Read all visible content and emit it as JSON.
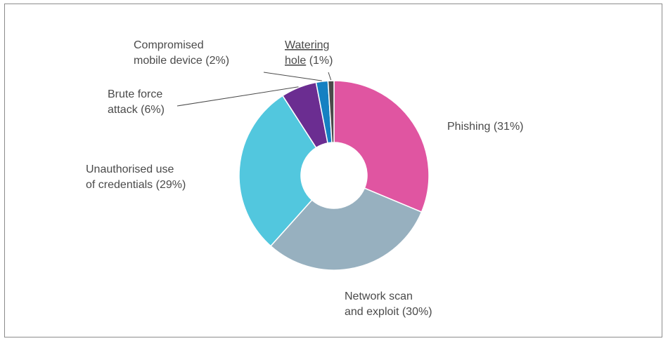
{
  "chart_data": {
    "type": "pie",
    "donut": true,
    "categories": [
      "Phishing",
      "Network scan and exploit",
      "Unauthorised use of credentials",
      "Brute force attack",
      "Compromised mobile device",
      "Watering hole"
    ],
    "values": [
      31,
      30,
      29,
      6,
      2,
      1
    ],
    "units": "%",
    "colors": [
      "#e055a1",
      "#97b0bf",
      "#52c7de",
      "#6b2d91",
      "#1580c2",
      "#4a4a4a"
    ],
    "labels": [
      {
        "lines": [
          "Phishing (31%)"
        ]
      },
      {
        "lines": [
          "Network scan",
          "and exploit (30%)"
        ]
      },
      {
        "lines": [
          "Unauthorised use",
          "of credentials (29%)"
        ]
      },
      {
        "lines": [
          "Brute force",
          "attack (6%)"
        ]
      },
      {
        "lines": [
          "Compromised",
          "mobile device (2%)"
        ]
      },
      {
        "lines": [
          "Watering",
          "hole (1%)"
        ]
      }
    ],
    "underlined_text": [
      "Watering",
      "hole"
    ],
    "legend": "none",
    "title": ""
  }
}
